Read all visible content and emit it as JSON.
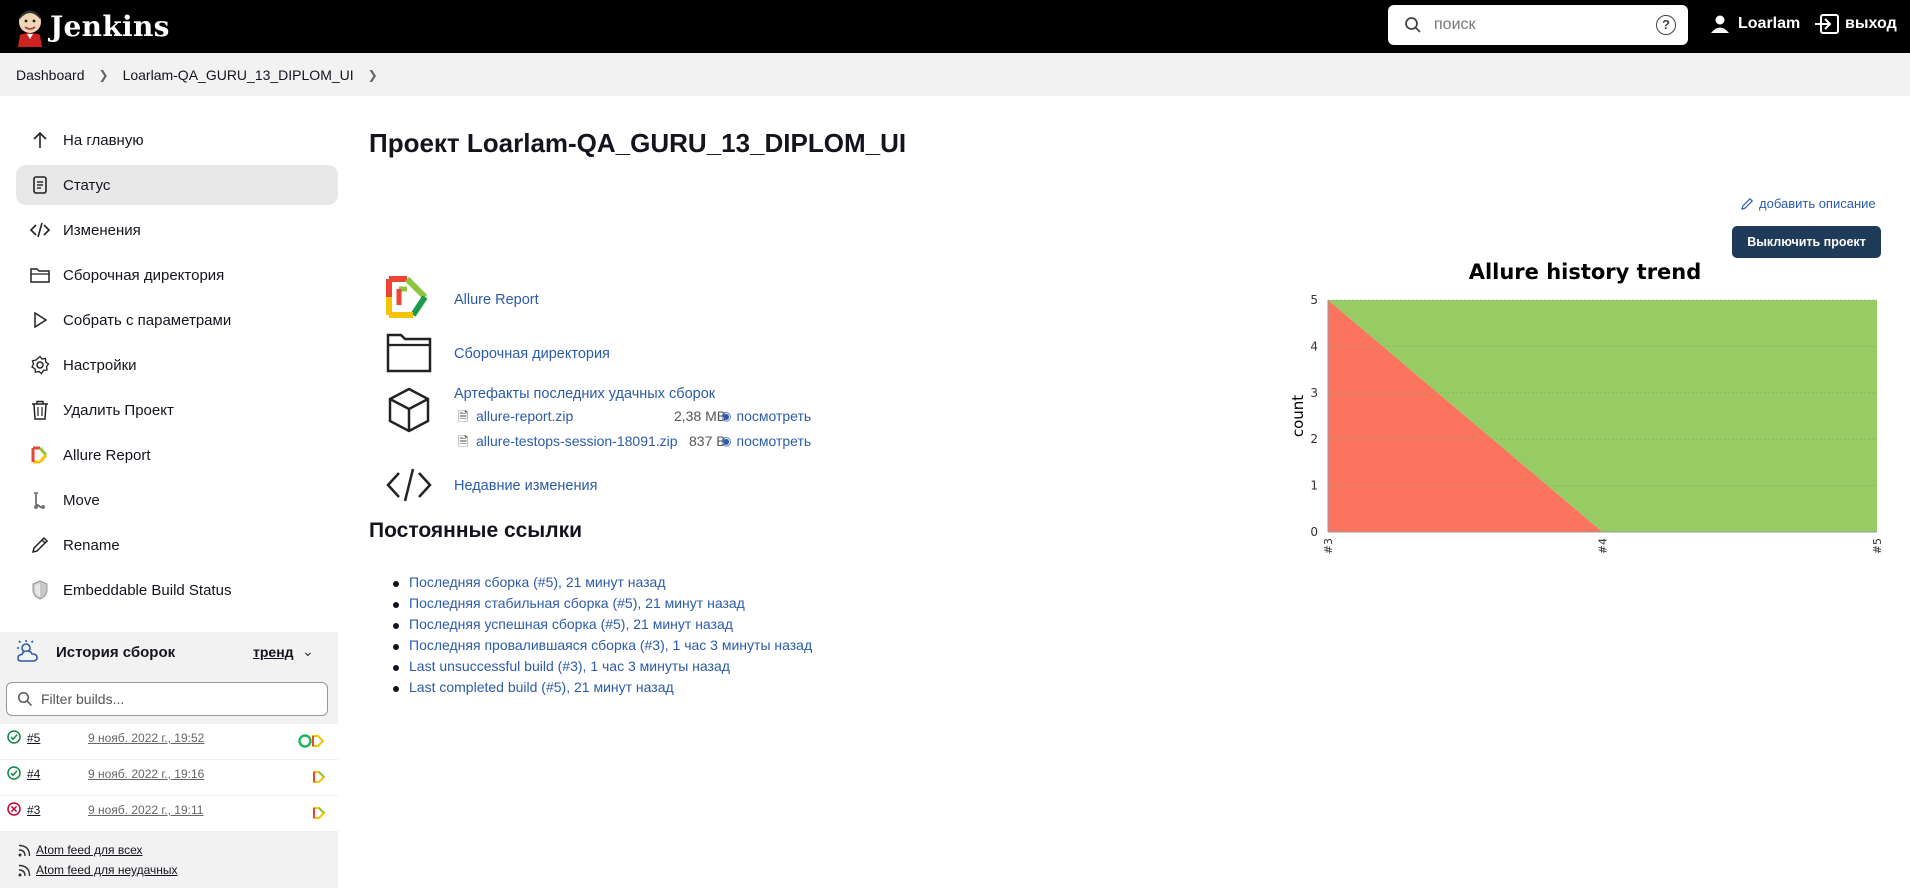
{
  "header": {
    "app_name": "Jenkins",
    "search_placeholder": "поиск",
    "help": "?",
    "user": "Loarlam",
    "logout": "выход"
  },
  "breadcrumb": [
    "Dashboard",
    "Loarlam-QA_GURU_13_DIPLOM_UI"
  ],
  "sidebar": {
    "items": [
      {
        "label": "На главную",
        "icon": "arrow-up-icon"
      },
      {
        "label": "Статус",
        "icon": "status-doc-icon"
      },
      {
        "label": "Изменения",
        "icon": "code-icon"
      },
      {
        "label": "Сборочная директория",
        "icon": "folder-icon"
      },
      {
        "label": "Собрать с параметрами",
        "icon": "play-icon"
      },
      {
        "label": "Настройки",
        "icon": "gear-icon"
      },
      {
        "label": "Удалить Проект",
        "icon": "trash-icon"
      },
      {
        "label": "Allure Report",
        "icon": "allure-icon"
      },
      {
        "label": "Move",
        "icon": "move-icon"
      },
      {
        "label": "Rename",
        "icon": "pencil-icon"
      },
      {
        "label": "Embeddable Build Status",
        "icon": "shield-icon"
      }
    ]
  },
  "build_history": {
    "title": "История сборок",
    "trend": "тренд",
    "filter_placeholder": "Filter builds...",
    "builds": [
      {
        "number": "#5",
        "date": "9 нояб. 2022 г., 19:52",
        "status": "success"
      },
      {
        "number": "#4",
        "date": "9 нояб. 2022 г., 19:16",
        "status": "success"
      },
      {
        "number": "#3",
        "date": "9 нояб. 2022 г., 19:11",
        "status": "failure"
      }
    ],
    "feeds": [
      "Atom feed для всех",
      "Atom feed для неудачных"
    ]
  },
  "main": {
    "title": "Проект Loarlam-QA_GURU_13_DIPLOM_UI",
    "add_description": "добавить описание",
    "disable_button": "Выключить проект",
    "links": [
      {
        "label": "Allure Report",
        "icon": "allure-icon"
      },
      {
        "label": "Сборочная директория",
        "icon": "folder-icon"
      },
      {
        "label": "Артефакты последних удачных сборок",
        "icon": "package-icon"
      },
      {
        "label": "Недавние изменения",
        "icon": "code-icon"
      }
    ],
    "artifacts": [
      {
        "name": "allure-report.zip",
        "size": "2,38 MB",
        "view": "посмотреть"
      },
      {
        "name": "allure-testops-session-18091.zip",
        "size": "837 B",
        "view": "посмотреть"
      }
    ],
    "permalinks_title": "Постоянные ссылки",
    "permalinks": [
      "Последняя сборка (#5), 21 минут назад",
      "Последняя стабильная сборка (#5), 21 минут назад",
      "Последняя успешная сборка (#5), 21 минут назад",
      "Последняя провалившаяся сборка (#3), 1 час 3 минуты назад",
      "Last unsuccessful build (#3), 1 час 3 минуты назад",
      "Last completed build (#5), 21 минут назад"
    ]
  },
  "chart_data": {
    "type": "area",
    "title": "Allure history trend",
    "ylabel": "count",
    "categories": [
      "#3",
      "#4",
      "#5"
    ],
    "ylim": [
      0,
      5
    ],
    "yticks": [
      "0",
      "1",
      "2",
      "3",
      "4",
      "5"
    ],
    "series": [
      {
        "values": [
          5,
          0,
          0
        ],
        "color": "#fd745e"
      },
      {
        "values": [
          0,
          5,
          5
        ],
        "color": "#97cc64"
      }
    ],
    "grid": true
  }
}
